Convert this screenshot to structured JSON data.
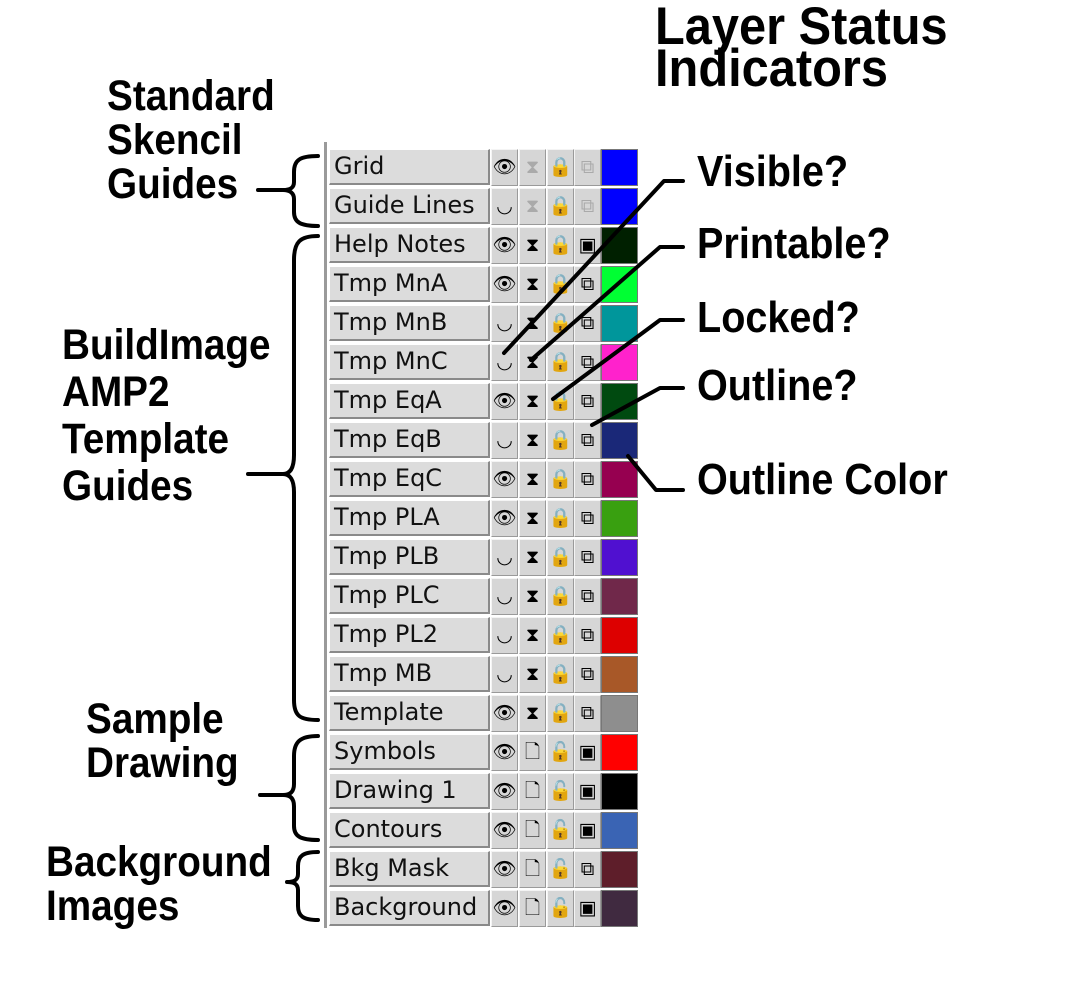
{
  "title": {
    "line1": "Layer Status",
    "line2": "Indicators"
  },
  "groups": {
    "standard": {
      "line1": "Standard",
      "line2": "Skencil",
      "line3": "Guides"
    },
    "buildimage": {
      "line1": "BuildImage",
      "line2": "AMP2",
      "line3": "Template",
      "line4": "Guides"
    },
    "sample": {
      "line1": "Sample",
      "line2": "Drawing"
    },
    "background": {
      "line1": "Background",
      "line2": "Images"
    }
  },
  "indicators": {
    "visible": "Visible?",
    "printable": "Printable?",
    "locked": "Locked?",
    "outline": "Outline?",
    "outline_color": "Outline Color"
  },
  "icons": {
    "visible": "eye-icon",
    "hidden": "closed-eye-icon",
    "printable": "page-icon",
    "not_printable": "crossed-page-icon",
    "locked": "locked-padlock-icon",
    "unlocked": "unlocked-padlock-icon",
    "outline": "outline-icon",
    "filled": "filled-icon"
  },
  "layers": [
    {
      "name": "Grid",
      "visible": true,
      "printable": false,
      "locked": true,
      "outline": true,
      "dim": true,
      "color": "#0000ff"
    },
    {
      "name": "Guide Lines",
      "visible": false,
      "printable": false,
      "locked": true,
      "outline": true,
      "dim": true,
      "color": "#0000ff"
    },
    {
      "name": "Help Notes",
      "visible": true,
      "printable": false,
      "locked": true,
      "outline": false,
      "dim": false,
      "color": "#002000"
    },
    {
      "name": "Tmp MnA",
      "visible": true,
      "printable": false,
      "locked": true,
      "outline": true,
      "dim": false,
      "color": "#00ff33"
    },
    {
      "name": "Tmp MnB",
      "visible": false,
      "printable": false,
      "locked": true,
      "outline": true,
      "dim": false,
      "color": "#00969b"
    },
    {
      "name": "Tmp MnC",
      "visible": false,
      "printable": false,
      "locked": true,
      "outline": true,
      "dim": false,
      "color": "#ff22cc"
    },
    {
      "name": "Tmp EqA",
      "visible": true,
      "printable": false,
      "locked": true,
      "outline": true,
      "dim": false,
      "color": "#004a10"
    },
    {
      "name": "Tmp EqB",
      "visible": false,
      "printable": false,
      "locked": true,
      "outline": true,
      "dim": false,
      "color": "#1a2878"
    },
    {
      "name": "Tmp EqC",
      "visible": true,
      "printable": false,
      "locked": true,
      "outline": true,
      "dim": false,
      "color": "#960050"
    },
    {
      "name": "Tmp PLA",
      "visible": true,
      "printable": false,
      "locked": true,
      "outline": true,
      "dim": false,
      "color": "#39a010"
    },
    {
      "name": "Tmp PLB",
      "visible": false,
      "printable": false,
      "locked": true,
      "outline": true,
      "dim": false,
      "color": "#5010d0"
    },
    {
      "name": "Tmp PLC",
      "visible": false,
      "printable": false,
      "locked": true,
      "outline": true,
      "dim": false,
      "color": "#70284a"
    },
    {
      "name": "Tmp PL2",
      "visible": false,
      "printable": false,
      "locked": true,
      "outline": true,
      "dim": false,
      "color": "#dd0000"
    },
    {
      "name": "Tmp MB",
      "visible": false,
      "printable": false,
      "locked": true,
      "outline": true,
      "dim": false,
      "color": "#a85828"
    },
    {
      "name": "Template",
      "visible": true,
      "printable": false,
      "locked": true,
      "outline": true,
      "dim": false,
      "color": "#8e8e8e"
    },
    {
      "name": "Symbols",
      "visible": true,
      "printable": true,
      "locked": false,
      "outline": false,
      "dim": false,
      "color": "#ff0000"
    },
    {
      "name": "Drawing 1",
      "visible": true,
      "printable": true,
      "locked": false,
      "outline": false,
      "dim": false,
      "color": "#000000"
    },
    {
      "name": "Contours",
      "visible": true,
      "printable": true,
      "locked": false,
      "outline": false,
      "dim": false,
      "color": "#3a64b4"
    },
    {
      "name": "Bkg Mask",
      "visible": true,
      "printable": true,
      "locked": false,
      "outline": true,
      "dim": false,
      "color": "#5e1e2a"
    },
    {
      "name": "Background",
      "visible": true,
      "printable": true,
      "locked": false,
      "outline": false,
      "dim": false,
      "color": "#402a40"
    }
  ]
}
